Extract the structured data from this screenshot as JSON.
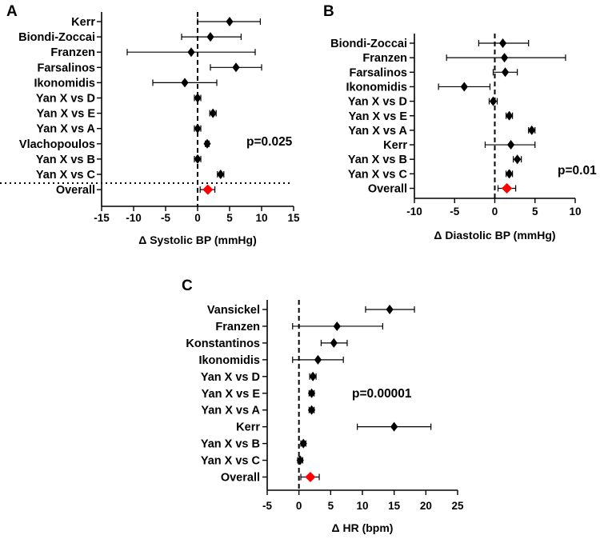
{
  "chart_data": [
    {
      "type": "forest",
      "panel": "A",
      "xlabel": "Δ Systolic BP (mmHg)",
      "xlim": [
        -15,
        15
      ],
      "xticks": [
        -15,
        -10,
        -5,
        0,
        5,
        10,
        15
      ],
      "pvalue": "p=0.025",
      "reference_line": 0,
      "separator_line": true,
      "studies": [
        {
          "label": "Kerr",
          "mean": 5.0,
          "lo": 0.0,
          "hi": 9.8
        },
        {
          "label": "Biondi-Zoccai",
          "mean": 2.0,
          "lo": -2.5,
          "hi": 6.8
        },
        {
          "label": "Franzen",
          "mean": -1.0,
          "lo": -11.0,
          "hi": 9.0
        },
        {
          "label": "Farsalinos",
          "mean": 6.0,
          "lo": 2.0,
          "hi": 10.0
        },
        {
          "label": "Ikonomidis",
          "mean": -2.0,
          "lo": -7.0,
          "hi": 3.0
        },
        {
          "label": "Yan X vs D",
          "mean": 0.0,
          "lo": -0.5,
          "hi": 0.5
        },
        {
          "label": "Yan X vs E",
          "mean": 2.4,
          "lo": 1.9,
          "hi": 2.9
        },
        {
          "label": "Yan X vs A",
          "mean": 0.0,
          "lo": -0.5,
          "hi": 0.5
        },
        {
          "label": "Vlachopoulos",
          "mean": 1.5,
          "lo": 1.2,
          "hi": 1.8
        },
        {
          "label": "Yan X vs B",
          "mean": 0.0,
          "lo": -0.5,
          "hi": 0.5
        },
        {
          "label": "Yan X vs C",
          "mean": 3.6,
          "lo": 3.1,
          "hi": 4.1
        },
        {
          "label": "Overall",
          "mean": 1.6,
          "lo": 0.4,
          "hi": 2.7,
          "overall": true
        }
      ]
    },
    {
      "type": "forest",
      "panel": "B",
      "xlabel": "Δ Diastolic BP (mmHg)",
      "xlim": [
        -10,
        10
      ],
      "xticks": [
        -10,
        -5,
        0,
        5,
        10
      ],
      "pvalue": "p=0.01",
      "reference_line": 0,
      "separator_line": false,
      "studies": [
        {
          "label": "Biondi-Zoccai",
          "mean": 1.0,
          "lo": -2.0,
          "hi": 4.2
        },
        {
          "label": "Franzen",
          "mean": 1.2,
          "lo": -6.0,
          "hi": 8.8
        },
        {
          "label": "Farsalinos",
          "mean": 1.3,
          "lo": -0.2,
          "hi": 2.8
        },
        {
          "label": "Ikonomidis",
          "mean": -3.8,
          "lo": -7.0,
          "hi": -0.6
        },
        {
          "label": "Yan X vs D",
          "mean": -0.2,
          "lo": -0.7,
          "hi": 0.3
        },
        {
          "label": "Yan X vs E",
          "mean": 1.8,
          "lo": 1.4,
          "hi": 2.2
        },
        {
          "label": "Yan X vs A",
          "mean": 4.6,
          "lo": 4.2,
          "hi": 5.0
        },
        {
          "label": "Kerr",
          "mean": 2.0,
          "lo": -1.2,
          "hi": 5.0
        },
        {
          "label": "Yan X vs B",
          "mean": 2.8,
          "lo": 2.3,
          "hi": 3.3
        },
        {
          "label": "Yan X vs C",
          "mean": 1.8,
          "lo": 1.4,
          "hi": 2.2
        },
        {
          "label": "Overall",
          "mean": 1.5,
          "lo": 0.4,
          "hi": 2.6,
          "overall": true
        }
      ]
    },
    {
      "type": "forest",
      "panel": "C",
      "xlabel": "Δ HR (bpm)",
      "xlim": [
        -5,
        25
      ],
      "xticks": [
        -5,
        0,
        5,
        10,
        15,
        20,
        25
      ],
      "pvalue": "p=0.00001",
      "reference_line": 0,
      "separator_line": false,
      "studies": [
        {
          "label": "Vansickel",
          "mean": 14.3,
          "lo": 10.5,
          "hi": 18.2
        },
        {
          "label": "Franzen",
          "mean": 6.0,
          "lo": -1.0,
          "hi": 13.2
        },
        {
          "label": "Konstantinos",
          "mean": 5.5,
          "lo": 3.5,
          "hi": 7.6
        },
        {
          "label": "Ikonomidis",
          "mean": 3.0,
          "lo": -1.0,
          "hi": 7.0
        },
        {
          "label": "Yan X vs D",
          "mean": 2.2,
          "lo": 1.7,
          "hi": 2.7
        },
        {
          "label": "Yan X vs E",
          "mean": 2.0,
          "lo": 1.6,
          "hi": 2.4
        },
        {
          "label": "Yan X vs A",
          "mean": 2.0,
          "lo": 1.6,
          "hi": 2.4
        },
        {
          "label": "Kerr",
          "mean": 15.0,
          "lo": 9.2,
          "hi": 20.8
        },
        {
          "label": "Yan X vs B",
          "mean": 0.7,
          "lo": 0.3,
          "hi": 1.1
        },
        {
          "label": "Yan X vs C",
          "mean": 0.2,
          "lo": -0.2,
          "hi": 0.6
        },
        {
          "label": "Overall",
          "mean": 1.8,
          "lo": 0.3,
          "hi": 3.2,
          "overall": true
        }
      ]
    }
  ],
  "colors": {
    "point": "#000000",
    "overall": "#ff0000",
    "axis": "#000000"
  }
}
